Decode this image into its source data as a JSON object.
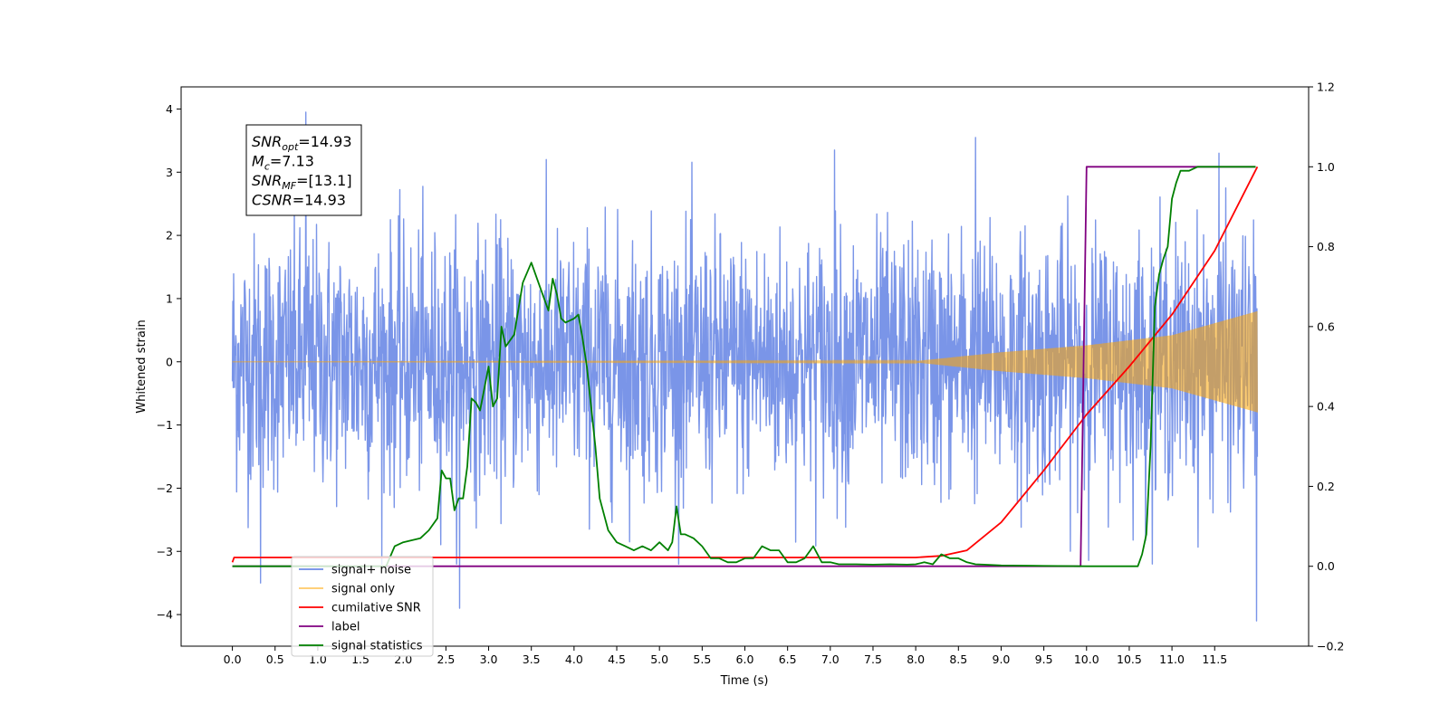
{
  "chart_data": {
    "type": "line",
    "xlabel": "Time (s)",
    "ylabel": "Whitened strain",
    "xlim": [
      -0.6,
      12.6
    ],
    "ylim": [
      -4.5,
      4.35
    ],
    "y2lim": [
      -0.2,
      1.2
    ],
    "x_ticks": [
      "0.0",
      "0.5",
      "1.0",
      "1.5",
      "2.0",
      "2.5",
      "3.0",
      "3.5",
      "4.0",
      "4.5",
      "5.0",
      "5.5",
      "6.0",
      "6.5",
      "7.0",
      "7.5",
      "8.0",
      "8.5",
      "9.0",
      "9.5",
      "10.0",
      "10.5",
      "11.0",
      "11.5"
    ],
    "y_ticks": [
      "4",
      "3",
      "2",
      "1",
      "0",
      "−1",
      "−2",
      "−3",
      "−4"
    ],
    "y2_ticks": [
      "1.2",
      "1.0",
      "0.8",
      "0.6",
      "0.4",
      "0.2",
      "0.0",
      "−0.2"
    ],
    "grid": false,
    "legend_position": "lower-left",
    "annotation": {
      "lines": [
        {
          "base": "SNR",
          "sub": "opt",
          "rest": "=14.93"
        },
        {
          "base": "M",
          "sub": "c",
          "rest": "=7.13"
        },
        {
          "base": "SNR",
          "sub": "MF",
          "rest": "=[13.1]"
        },
        {
          "base": "CSNR",
          "sub": "",
          "rest": "=14.93"
        }
      ]
    },
    "series": [
      {
        "name": "signal+ noise",
        "axis": "left",
        "color": "#6b8ae6",
        "style": "noise band",
        "x_range": [
          0.0,
          12.0
        ],
        "noise_sigma": 1.0,
        "extremes": [
          [
            0.33,
            -3.5
          ],
          [
            0.86,
            3.95
          ],
          [
            2.66,
            -3.9
          ],
          [
            7.05,
            3.35
          ],
          [
            8.7,
            3.55
          ],
          [
            11.55,
            3.3
          ],
          [
            11.99,
            -4.1
          ]
        ]
      },
      {
        "name": "signal only",
        "axis": "left",
        "color": "#ffa500",
        "style": "chirp",
        "x_range": [
          0.0,
          12.0
        ],
        "envelope": {
          "x": [
            0.0,
            8.0,
            8.5,
            9.0,
            10.0,
            11.0,
            12.0
          ],
          "amp": [
            0.0,
            0.01,
            0.08,
            0.15,
            0.26,
            0.42,
            0.8
          ]
        }
      },
      {
        "name": "cumilative SNR",
        "axis": "right",
        "color": "#ff0000",
        "x": [
          0.0,
          0.02,
          8.0,
          8.3,
          8.6,
          9.0,
          9.5,
          10.0,
          10.5,
          11.0,
          11.5,
          12.0
        ],
        "y": [
          0.01,
          0.022,
          0.022,
          0.026,
          0.04,
          0.11,
          0.24,
          0.38,
          0.5,
          0.63,
          0.79,
          1.0
        ]
      },
      {
        "name": "label",
        "axis": "right",
        "color": "#800080",
        "x": [
          0.0,
          9.93,
          10.0,
          11.98
        ],
        "y": [
          0.0,
          0.0,
          1.0,
          1.0
        ]
      },
      {
        "name": "signal statistics",
        "axis": "right",
        "color": "#008000",
        "x": [
          0.0,
          1.8,
          1.9,
          2.0,
          2.2,
          2.3,
          2.4,
          2.45,
          2.5,
          2.55,
          2.6,
          2.65,
          2.7,
          2.75,
          2.8,
          2.85,
          2.9,
          3.0,
          3.05,
          3.1,
          3.15,
          3.2,
          3.3,
          3.4,
          3.5,
          3.6,
          3.7,
          3.75,
          3.8,
          3.85,
          3.9,
          4.0,
          4.05,
          4.1,
          4.15,
          4.2,
          4.25,
          4.3,
          4.4,
          4.5,
          4.6,
          4.7,
          4.8,
          4.9,
          5.0,
          5.1,
          5.15,
          5.2,
          5.25,
          5.3,
          5.4,
          5.5,
          5.6,
          5.7,
          5.8,
          5.9,
          6.0,
          6.1,
          6.2,
          6.3,
          6.4,
          6.5,
          6.6,
          6.7,
          6.8,
          6.9,
          7.0,
          7.1,
          7.2,
          7.3,
          7.5,
          7.7,
          7.9,
          8.0,
          8.1,
          8.2,
          8.3,
          8.4,
          8.5,
          8.6,
          8.7,
          8.8,
          9.0,
          9.5,
          10.0,
          10.4,
          10.6,
          10.65,
          10.7,
          10.75,
          10.8,
          10.85,
          10.9,
          10.95,
          11.0,
          11.05,
          11.1,
          11.2,
          11.3,
          11.5,
          11.98
        ],
        "y": [
          0.0,
          0.0,
          0.05,
          0.06,
          0.07,
          0.09,
          0.12,
          0.24,
          0.22,
          0.22,
          0.14,
          0.17,
          0.17,
          0.25,
          0.42,
          0.41,
          0.39,
          0.5,
          0.4,
          0.42,
          0.6,
          0.55,
          0.58,
          0.71,
          0.76,
          0.7,
          0.64,
          0.72,
          0.68,
          0.62,
          0.61,
          0.62,
          0.63,
          0.57,
          0.5,
          0.4,
          0.3,
          0.17,
          0.09,
          0.06,
          0.05,
          0.04,
          0.05,
          0.04,
          0.06,
          0.04,
          0.06,
          0.15,
          0.08,
          0.08,
          0.07,
          0.05,
          0.02,
          0.02,
          0.01,
          0.01,
          0.02,
          0.02,
          0.05,
          0.04,
          0.04,
          0.01,
          0.01,
          0.02,
          0.05,
          0.01,
          0.01,
          0.005,
          0.005,
          0.005,
          0.004,
          0.005,
          0.004,
          0.005,
          0.01,
          0.005,
          0.03,
          0.02,
          0.02,
          0.01,
          0.005,
          0.004,
          0.002,
          0.001,
          0.0,
          0.0,
          0.0,
          0.03,
          0.08,
          0.3,
          0.65,
          0.73,
          0.77,
          0.8,
          0.92,
          0.96,
          0.99,
          0.99,
          1.0,
          1.0,
          1.0
        ]
      }
    ]
  }
}
